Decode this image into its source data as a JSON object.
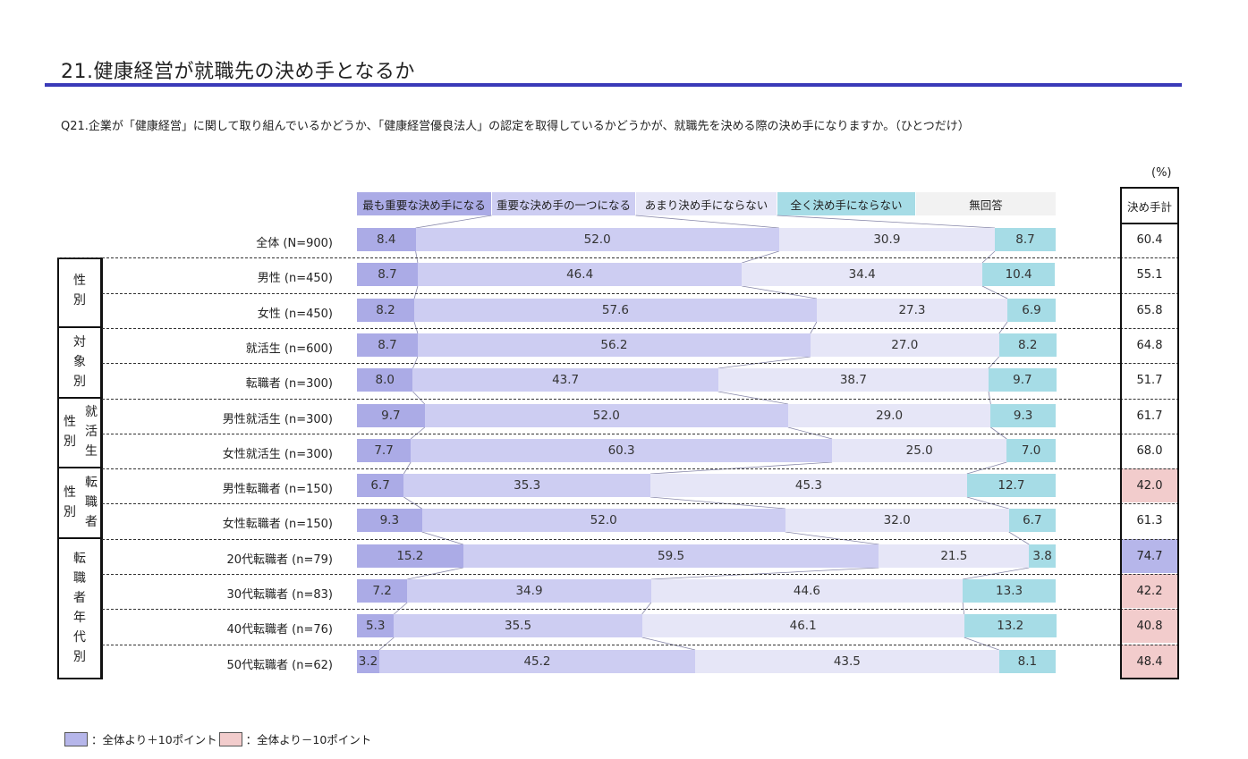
{
  "title": "21.健康経営が就職先の決め手となるか",
  "question": "Q21.企業が「健康経営」に関して取り組んでいるかどうか、「健康経営優良法人」の認定を取得しているかどうかが、就職先を決める際の決め手になりますか。（ひとつだけ）",
  "unit": "(%)",
  "kettei_header": "決め手計",
  "colors": {
    "most_important": "#ababe6",
    "one_of_important": "#cdcdf2",
    "not_much": "#e6e6f7",
    "not_at_all": "#a6dce6",
    "no_answer": "#f2f2f2",
    "plus10": "#b6b6ea",
    "minus10": "#f2cccc"
  },
  "groups": [
    {
      "label": "性別",
      "rows": [
        1,
        2
      ]
    },
    {
      "label": "対象別",
      "rows": [
        3,
        4
      ]
    },
    {
      "label_a": "性別",
      "label_b": "就活生",
      "rows": [
        5,
        6
      ]
    },
    {
      "label_a": "性別",
      "label_b": "転職者",
      "rows": [
        7,
        8
      ]
    },
    {
      "label": "転職者年代別",
      "rows": [
        9,
        10,
        11,
        12
      ]
    }
  ],
  "footer": {
    "plus_label": "：全体より＋10ポイント",
    "minus_label": "：全体より－10ポイント"
  },
  "chart_data": {
    "type": "bar",
    "stacked": true,
    "orientation": "horizontal",
    "series": [
      {
        "name": "最も重要な決め手になる"
      },
      {
        "name": "重要な決め手の一つになる"
      },
      {
        "name": "あまり決め手にならない"
      },
      {
        "name": "全く決め手にならない"
      },
      {
        "name": "無回答"
      }
    ],
    "categories": [
      "全体 (N=900)",
      "男性 (n=450)",
      "女性 (n=450)",
      "就活生 (n=600)",
      "転職者 (n=300)",
      "男性就活生 (n=300)",
      "女性就活生 (n=300)",
      "男性転職者 (n=150)",
      "女性転職者 (n=150)",
      "20代転職者 (n=79)",
      "30代転職者 (n=83)",
      "40代転職者 (n=76)",
      "50代転職者 (n=62)"
    ],
    "values": [
      [
        8.4,
        52.0,
        30.9,
        8.7
      ],
      [
        8.7,
        46.4,
        34.4,
        10.4
      ],
      [
        8.2,
        57.6,
        27.3,
        6.9
      ],
      [
        8.7,
        56.2,
        27.0,
        8.2
      ],
      [
        8.0,
        43.7,
        38.7,
        9.7
      ],
      [
        9.7,
        52.0,
        29.0,
        9.3
      ],
      [
        7.7,
        60.3,
        25.0,
        7.0
      ],
      [
        6.7,
        35.3,
        45.3,
        12.7
      ],
      [
        9.3,
        52.0,
        32.0,
        6.7
      ],
      [
        15.2,
        59.5,
        21.5,
        3.8
      ],
      [
        7.2,
        34.9,
        44.6,
        13.3
      ],
      [
        5.3,
        35.5,
        46.1,
        13.2
      ],
      [
        3.2,
        45.2,
        43.5,
        8.1
      ]
    ],
    "labels": [
      [
        "8.4",
        "52.0",
        "30.9",
        "8.7"
      ],
      [
        "8.7",
        "46.4",
        "34.4",
        "10.4"
      ],
      [
        "8.2",
        "57.6",
        "27.3",
        "6.9"
      ],
      [
        "8.7",
        "56.2",
        "27.0",
        "8.2"
      ],
      [
        "8.0",
        "43.7",
        "38.7",
        "9.7"
      ],
      [
        "9.7",
        "52.0",
        "29.0",
        "9.3"
      ],
      [
        "7.7",
        "60.3",
        "25.0",
        "7.0"
      ],
      [
        "6.7",
        "35.3",
        "45.3",
        "12.7"
      ],
      [
        "9.3",
        "52.0",
        "32.0",
        "6.7"
      ],
      [
        "15.2",
        "59.5",
        "21.5",
        "3.8"
      ],
      [
        "7.2",
        "34.9",
        "44.6",
        "13.3"
      ],
      [
        "5.3",
        "35.5",
        "46.1",
        "13.2"
      ],
      [
        "3.2",
        "45.2",
        "43.5",
        "8.1"
      ]
    ],
    "kettei": [
      "60.4",
      "55.1",
      "65.8",
      "64.8",
      "51.7",
      "61.7",
      "68.0",
      "42.0",
      "61.3",
      "74.7",
      "42.2",
      "40.8",
      "48.4"
    ],
    "kettei_highlight": [
      "none",
      "none",
      "none",
      "none",
      "none",
      "none",
      "none",
      "minus",
      "none",
      "plus",
      "minus",
      "minus",
      "minus"
    ],
    "xlim": [
      0,
      100
    ]
  }
}
